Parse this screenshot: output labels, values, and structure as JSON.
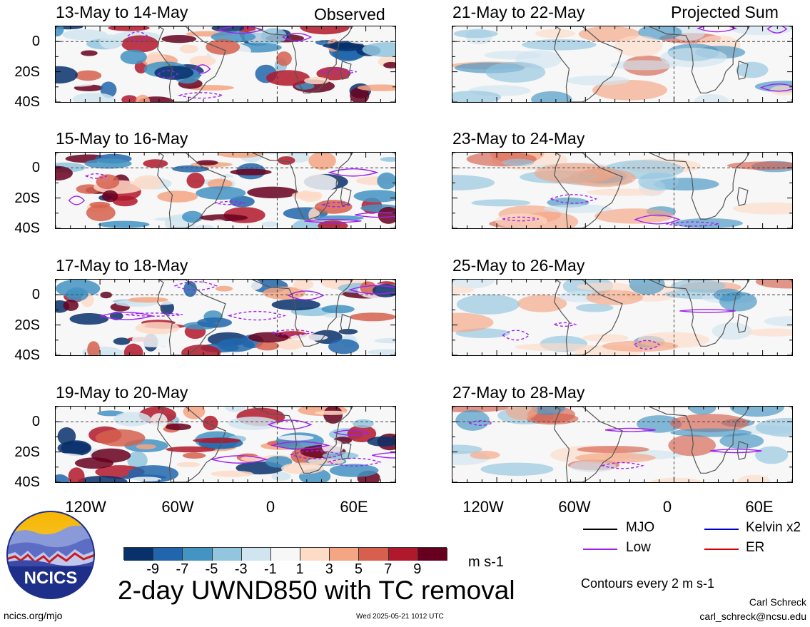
{
  "header": {
    "observed_label": "Observed",
    "projected_label": "Projected Sum"
  },
  "panels_left": [
    {
      "title": "13-May to 14-May"
    },
    {
      "title": "15-May to 16-May"
    },
    {
      "title": "17-May to 18-May"
    },
    {
      "title": "19-May to 20-May"
    }
  ],
  "panels_right": [
    {
      "title": "21-May to 22-May"
    },
    {
      "title": "23-May to 24-May"
    },
    {
      "title": "25-May to 26-May"
    },
    {
      "title": "27-May to 28-May"
    }
  ],
  "y_ticks": [
    "0",
    "20S",
    "40S"
  ],
  "x_ticks": [
    "120W",
    "60W",
    "0",
    "60E"
  ],
  "colorbar": {
    "colors": [
      "#08306b",
      "#2166ac",
      "#4393c3",
      "#92c5de",
      "#d1e5f0",
      "#f7f7f7",
      "#fddbc7",
      "#f4a582",
      "#d6604d",
      "#b2182b",
      "#67001f"
    ],
    "labels": [
      "-9",
      "-7",
      "-5",
      "-3",
      "-1",
      "1",
      "3",
      "5",
      "7",
      "9"
    ],
    "unit": "m s-1"
  },
  "main_title": "2-day UWND850 with TC removal",
  "legend": {
    "items": [
      {
        "label": "MJO",
        "color": "#000000"
      },
      {
        "label": "Kelvin x2",
        "color": "#0000cc"
      },
      {
        "label": "Low",
        "color": "#a020f0"
      },
      {
        "label": "ER",
        "color": "#cc0000"
      }
    ],
    "contour_note": "Contours every 2 m s-1"
  },
  "logo": {
    "text": "NCICS"
  },
  "footer": {
    "url": "ncics.org/mjo",
    "timestamp": "Wed 2025-05-21 1012 UTC",
    "author": "Carl Schreck",
    "email": "carl_schreck@ncsu.edu"
  },
  "chart_data": {
    "type": "heatmap",
    "variable": "UWND850",
    "units": "m s-1",
    "lon_range": [
      "150W",
      "80E"
    ],
    "lat_range": [
      "10N",
      "40S"
    ],
    "x_ticks": [
      "120W",
      "60W",
      "0",
      "60E"
    ],
    "y_ticks": [
      "0",
      "20S",
      "40S"
    ],
    "color_levels": [
      -9,
      -7,
      -5,
      -3,
      -1,
      1,
      3,
      5,
      7,
      9
    ],
    "contour_interval": 2,
    "panels": [
      {
        "title": "13-May to 14-May",
        "group": "Observed"
      },
      {
        "title": "15-May to 16-May",
        "group": "Observed"
      },
      {
        "title": "17-May to 18-May",
        "group": "Observed"
      },
      {
        "title": "19-May to 20-May",
        "group": "Observed"
      },
      {
        "title": "21-May to 22-May",
        "group": "Projected Sum"
      },
      {
        "title": "23-May to 24-May",
        "group": "Projected Sum"
      },
      {
        "title": "25-May to 26-May",
        "group": "Projected Sum"
      },
      {
        "title": "27-May to 28-May",
        "group": "Projected Sum"
      }
    ]
  }
}
